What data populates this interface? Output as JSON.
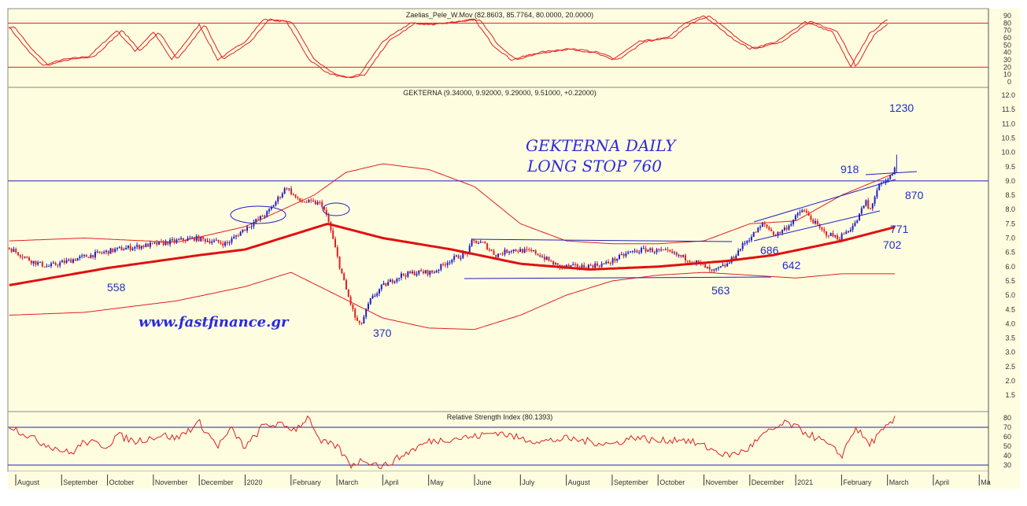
{
  "chart_data": [
    {
      "type": "line",
      "title": "Zaelias_Pele_W.Mov (82.8603, 85.7764, 80.0000, 20.0000)",
      "ylim": [
        0,
        95
      ],
      "yticks": [
        "90",
        "80",
        "70",
        "60",
        "50",
        "40",
        "30",
        "20",
        "10",
        "0"
      ],
      "levels": [
        80,
        20
      ],
      "x_unit": "months since Aug 2019",
      "series": [
        {
          "name": "oscillator",
          "x": [
            -0.15,
            0.3,
            0.6,
            1,
            1.6,
            2.2,
            2.6,
            3,
            3.4,
            4,
            4.4,
            5,
            5.4,
            5.9,
            6.4,
            6.8,
            7.2,
            7.5,
            8,
            8.6,
            9,
            9.6,
            10,
            10.4,
            10.8,
            11.4,
            12,
            12.6,
            13,
            13.6,
            14.2,
            14.6,
            15,
            15.6,
            16,
            16.6,
            17.2,
            17.8,
            18.2,
            18.6,
            19
          ],
          "y": [
            75,
            40,
            22,
            30,
            35,
            70,
            42,
            68,
            30,
            78,
            30,
            55,
            85,
            82,
            30,
            12,
            5,
            10,
            55,
            80,
            78,
            82,
            85,
            50,
            30,
            40,
            45,
            40,
            30,
            55,
            60,
            80,
            90,
            60,
            45,
            55,
            82,
            68,
            20,
            65,
            85
          ]
        }
      ]
    },
    {
      "type": "candlestick",
      "title": "GEKTERNA (9.34000, 9.92000, 9.29000, 9.51000, +0.22000)",
      "ylim": [
        1.2,
        12.3
      ],
      "yticks": [
        "12.0",
        "11.5",
        "11.0",
        "10.5",
        "10.0",
        "9.5",
        "9.0",
        "8.5",
        "8.0",
        "7.5",
        "7.0",
        "6.5",
        "6.0",
        "5.5",
        "5.0",
        "4.5",
        "4.0",
        "3.5",
        "3.0",
        "2.5",
        "2.0",
        "1.5"
      ],
      "last": {
        "open": 9.34,
        "high": 9.92,
        "low": 9.29,
        "close": 9.51,
        "change": 0.22
      },
      "close_path": {
        "x": [
          -0.14,
          0.34,
          0.69,
          1.37,
          2.2,
          3.1,
          3.9,
          4.6,
          4.97,
          5.5,
          5.9,
          6.16,
          6.67,
          6.83,
          7.03,
          7.2,
          7.4,
          7.51,
          7.72,
          7.98,
          8.4,
          8.75,
          9.1,
          9.43,
          9.86,
          9.95,
          10.2,
          10.46,
          10.8,
          11.32,
          11.83,
          12.35,
          12.86,
          13.38,
          13.72,
          14.23,
          14.92,
          15.18,
          15.53,
          15.87,
          16.3,
          16.56,
          16.82,
          17.15,
          17.6,
          17.94,
          18.3,
          18.53,
          18.6,
          18.8,
          19.0,
          19.2
        ],
        "y": [
          6.65,
          6.2,
          6.0,
          6.3,
          6.6,
          6.8,
          7.0,
          6.8,
          7.3,
          7.9,
          8.8,
          8.3,
          8.2,
          7.5,
          6.2,
          5.2,
          4.2,
          3.9,
          4.8,
          5.3,
          5.7,
          5.8,
          5.8,
          6.2,
          6.5,
          6.9,
          6.8,
          6.4,
          6.6,
          6.5,
          6.0,
          6.0,
          6.1,
          6.5,
          6.6,
          6.5,
          6.1,
          5.8,
          6.1,
          6.8,
          7.5,
          7.1,
          7.4,
          8.0,
          7.2,
          7.0,
          7.5,
          8.3,
          7.9,
          8.8,
          9.0,
          9.51
        ]
      },
      "moving_average": {
        "x": [
          -0.14,
          2,
          4,
          5.0,
          6.8,
          8,
          9.5,
          11,
          12.5,
          14,
          15.5,
          16.5,
          18,
          19.2
        ],
        "y": [
          5.35,
          5.95,
          6.4,
          6.6,
          7.5,
          7.0,
          6.6,
          6.1,
          5.9,
          6.0,
          6.2,
          6.4,
          6.9,
          7.4
        ]
      },
      "upper_band": {
        "x": [
          -0.14,
          1.5,
          3.5,
          5,
          6.5,
          7.2,
          8,
          9,
          10,
          11,
          12,
          13,
          14,
          15,
          16,
          17,
          18,
          19.2
        ],
        "y": [
          6.9,
          7.0,
          6.85,
          7.4,
          8.5,
          9.3,
          9.6,
          9.4,
          8.8,
          7.5,
          6.9,
          6.8,
          6.8,
          6.9,
          7.5,
          7.6,
          8.5,
          9.3
        ]
      },
      "lower_band": {
        "x": [
          -0.14,
          1.5,
          3.5,
          5,
          6,
          7,
          8,
          9,
          10,
          11,
          12,
          13,
          14,
          15,
          16,
          17,
          18,
          19.2
        ],
        "y": [
          4.3,
          4.4,
          4.8,
          5.3,
          5.8,
          5.0,
          4.2,
          3.85,
          3.8,
          4.3,
          5.0,
          5.5,
          5.7,
          5.8,
          5.7,
          5.6,
          5.75,
          5.75
        ]
      },
      "resistance_level": 9.0,
      "annotations": [
        "1230",
        "918",
        "870",
        "771",
        "702",
        "686",
        "642",
        "563",
        "558",
        "370"
      ],
      "headline": [
        "GEKTERNA DAILY",
        "LONG STOP 760"
      ],
      "watermark": "www.fastfinance.gr"
    },
    {
      "type": "line",
      "title": "Relative Strength Index (80.1393)",
      "ylim": [
        22,
        86
      ],
      "yticks": [
        "80",
        "70",
        "60",
        "50",
        "40",
        "30"
      ],
      "levels": [
        70,
        30
      ],
      "series": [
        {
          "name": "RSI",
          "x": [
            -0.14,
            0.5,
            1.2,
            1.5,
            2,
            2.2,
            2.6,
            3.2,
            3.5,
            4,
            4.4,
            4.7,
            5,
            5.4,
            5.7,
            6.1,
            6.4,
            6.6,
            7,
            7.3,
            7.6,
            8,
            8.6,
            9,
            9.5,
            10,
            10.5,
            11,
            11.5,
            12,
            12.5,
            13,
            13.5,
            14,
            14.5,
            15,
            15.5,
            15.9,
            16.3,
            16.8,
            17.2,
            17.6,
            18,
            18.3,
            18.6,
            19.2
          ],
          "y": [
            72,
            55,
            42,
            55,
            50,
            62,
            55,
            62,
            58,
            75,
            50,
            68,
            48,
            72,
            73,
            68,
            82,
            55,
            50,
            30,
            36,
            28,
            45,
            55,
            58,
            60,
            65,
            58,
            55,
            58,
            55,
            52,
            60,
            55,
            58,
            50,
            40,
            45,
            62,
            75,
            65,
            55,
            40,
            70,
            52,
            80
          ]
        }
      ]
    }
  ],
  "x_axis": {
    "labels": [
      "August",
      "September",
      "October",
      "November",
      "December",
      "2020",
      "February",
      "March",
      "April",
      "May",
      "June",
      "July",
      "August",
      "September",
      "October",
      "November",
      "December",
      "2021",
      "February",
      "March",
      "April",
      "Ma"
    ]
  },
  "colors": {
    "background": "#fffde0",
    "line": "#e02020",
    "blue": "#2020c0"
  }
}
